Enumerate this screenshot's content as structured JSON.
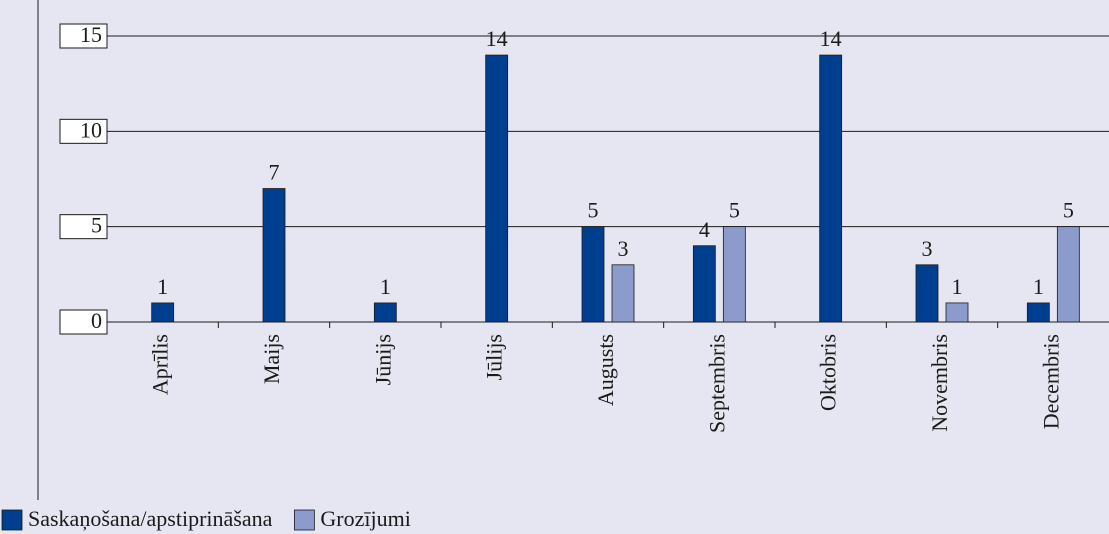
{
  "chart_data": {
    "type": "bar",
    "categories": [
      "Aprīlis",
      "Maijs",
      "Jūnijs",
      "Jūlijs",
      "Augusts",
      "Septembris",
      "Oktobris",
      "Novembris",
      "Decembris"
    ],
    "series": [
      {
        "name": "Saskaņošana/apstiprināšana",
        "color": "#003f8f",
        "values": [
          1,
          7,
          1,
          14,
          5,
          4,
          14,
          3,
          1
        ]
      },
      {
        "name": "Grozījumi",
        "color": "#8a9bcc",
        "values": [
          null,
          null,
          null,
          null,
          3,
          5,
          null,
          1,
          5
        ]
      }
    ],
    "ylim": [
      0,
      15
    ],
    "yticks": [
      0,
      5,
      10,
      15
    ],
    "grid": true
  }
}
